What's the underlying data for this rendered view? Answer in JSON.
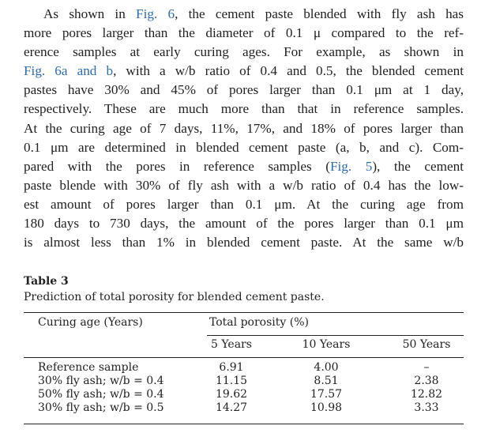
{
  "paragraph": {
    "lines": [
      [
        "As shown in ",
        {
          "text": "Fig. 6",
          "color": "#2a6db5"
        },
        ", the cement paste blended with fly ash has"
      ],
      [
        "more pores larger than the diameter of 0.1 μ compared to the ref-"
      ],
      [
        "erence samples at early curing ages. For example, as shown in"
      ],
      [
        {
          "text": "Fig. 6a and b",
          "color": "#2a6db5"
        },
        ", with a w/b ratio of 0.4 and 0.5, the blended cement"
      ],
      [
        "pastes have 30% and 45% of pores larger than 0.1 μm at 1 day,"
      ],
      [
        "respectively. These are much more than that in reference samples."
      ],
      [
        "At the curing age of 7 days, 11%, 17%, and 18% of pores larger than"
      ],
      [
        "0.1 μm are determined in blended cement paste (a, b, and c). Com-"
      ],
      [
        "pared with the pores in reference samples (",
        {
          "text": "Fig. 5",
          "color": "#2a6db5"
        },
        "), the cement"
      ],
      [
        "paste blende with 30% of fly ash with a w/b ratio of 0.4 has the low-"
      ],
      [
        "est amount of pores larger than 0.1 μm. At the curing age from"
      ],
      [
        "180 days to 730 days, the amount of the pores larger than 0.1 μm"
      ],
      [
        "is almost less than 1% in blended cement paste. At the same w/b"
      ]
    ]
  },
  "table": {
    "label": "Table 3",
    "caption": "Prediction of total porosity for blended cement paste.",
    "row_header": "Curing age (Years)",
    "group_header": "Total porosity (%)",
    "columns": [
      "5 Years",
      "10 Years",
      "50 Years"
    ],
    "rows": [
      [
        "Reference sample",
        "6.91",
        "4.00",
        "–"
      ],
      [
        "30% fly ash; w/b = 0.4",
        "11.15",
        "8.51",
        "2.38"
      ],
      [
        "50% fly ash; w/b = 0.4",
        "19.62",
        "17.57",
        "12.82"
      ],
      [
        "30% fly ash; w/b = 0.5",
        "14.27",
        "10.98",
        "3.33"
      ]
    ]
  }
}
